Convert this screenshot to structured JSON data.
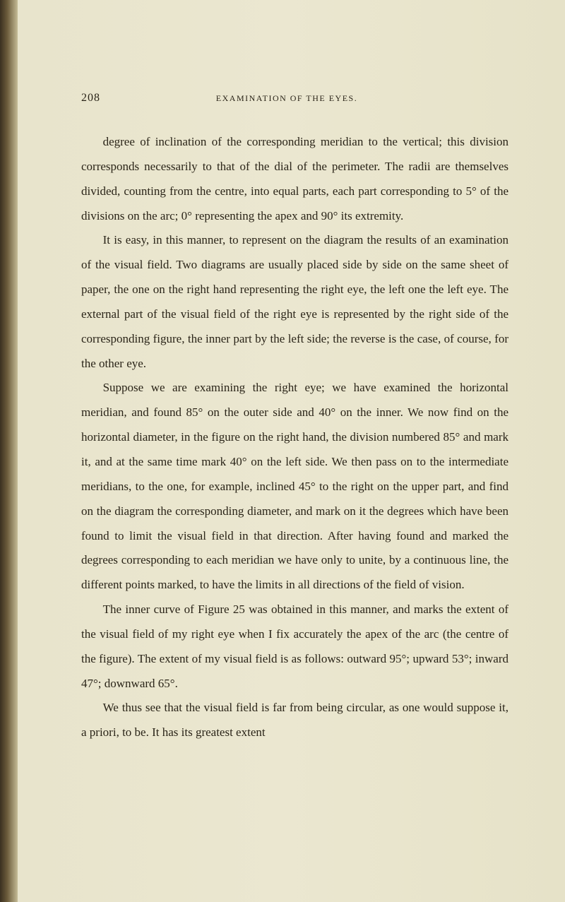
{
  "page": {
    "number": "208",
    "running_title": "EXAMINATION OF THE EYES.",
    "background_color": "#e8e4cc",
    "text_color": "#2a2418",
    "font_family": "Times New Roman",
    "body_fontsize": 17,
    "line_height": 2.05,
    "paragraphs": [
      "degree of inclination of the corresponding meridian to the vertical; this division corresponds necessarily to that of the dial of the perimeter. The radii are themselves divided, counting from the centre, into equal parts, each part corresponding to 5° of the divisions on the arc; 0° representing the apex and 90° its extremity.",
      "It is easy, in this manner, to represent on the diagram the results of an examination of the visual field. Two diagrams are usually placed side by side on the same sheet of paper, the one on the right hand representing the right eye, the left one the left eye. The external part of the visual field of the right eye is represented by the right side of the corresponding figure, the inner part by the left side; the reverse is the case, of course, for the other eye.",
      "Suppose we are examining the right eye; we have examined the horizontal meridian, and found 85° on the outer side and 40° on the inner. We now find on the horizontal diameter, in the figure on the right hand, the division numbered 85° and mark it, and at the same time mark 40° on the left side. We then pass on to the intermediate meridians, to the one, for example, inclined 45° to the right on the upper part, and find on the diagram the corresponding diameter, and mark on it the degrees which have been found to limit the visual field in that direction. After having found and marked the degrees corresponding to each meridian we have only to unite, by a continuous line, the different points marked, to have the limits in all directions of the field of vision.",
      "The inner curve of Figure 25 was obtained in this manner, and marks the extent of the visual field of my right eye when I fix accurately the apex of the arc (the centre of the figure). The extent of my visual field is as follows: outward 95°; upward 53°; inward 47°; downward 65°.",
      "We thus see that the visual field is far from being circular, as one would suppose it, a priori, to be. It has its greatest extent"
    ]
  }
}
